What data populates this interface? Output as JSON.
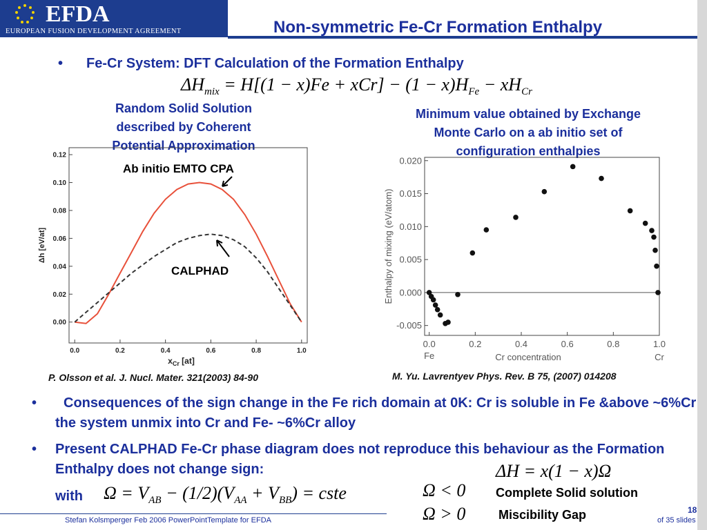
{
  "header": {
    "logo": "EFDA",
    "logo_subtitle": "EUROPEAN FUSION DEVELOPMENT AGREEMENT",
    "title": "Non-symmetric Fe-Cr Formation Enthalpy"
  },
  "bullet_top": "Fe-Cr System: DFT  Calculation of the Formation Enthalpy",
  "formula_main": [
    {
      "text": "ΔH",
      "sub": "mix"
    },
    {
      "text": " = H[(1 − x)Fe + xCr] − (1 − x)H",
      "sub": "Fe"
    },
    {
      "text": " − xH",
      "sub": "Cr"
    }
  ],
  "left_caption": [
    "Random Solid Solution",
    "described by Coherent",
    "Potential Approximation"
  ],
  "right_caption": [
    "Minimum value obtained by Exchange",
    "Monte Carlo on a ab initio set of",
    "configuration enthalpies"
  ],
  "left_reference": "P. Olsson et al. J. Nucl. Mater. 321(2003) 84-90",
  "right_reference": "M. Yu. Lavrentyev Phys. Rev. B 75, (2007) 014208",
  "chart_data": [
    {
      "type": "line",
      "x_label": {
        "text": "x",
        "sub": "Cr",
        "unit": " [at]"
      },
      "y_label": "Δh [eV/at]",
      "x": [
        0,
        0.05,
        0.1,
        0.15,
        0.2,
        0.25,
        0.3,
        0.35,
        0.4,
        0.45,
        0.5,
        0.55,
        0.6,
        0.65,
        0.7,
        0.75,
        0.8,
        0.85,
        0.9,
        0.95,
        1.0
      ],
      "series": [
        {
          "name": "Ab initio EMTO  CPA",
          "color": "#e8503a",
          "dashed": false,
          "values": [
            0,
            -0.001,
            0.006,
            0.02,
            0.035,
            0.05,
            0.065,
            0.078,
            0.088,
            0.095,
            0.099,
            0.1,
            0.099,
            0.095,
            0.088,
            0.077,
            0.063,
            0.047,
            0.03,
            0.013,
            0
          ]
        },
        {
          "name": "CALPHAD",
          "color": "#333333",
          "dashed": true,
          "values": [
            0,
            0.007,
            0.014,
            0.021,
            0.028,
            0.035,
            0.041,
            0.047,
            0.052,
            0.057,
            0.06,
            0.062,
            0.063,
            0.062,
            0.059,
            0.054,
            0.046,
            0.036,
            0.024,
            0.012,
            0
          ]
        }
      ],
      "xlim": [
        -0.025,
        1.025
      ],
      "xticks": [
        {
          "value": 0,
          "label": "0.0"
        },
        0.2,
        0.4,
        0.6,
        0.8,
        {
          "value": 1,
          "label": "1.0"
        }
      ],
      "ylim": [
        -0.015,
        0.125
      ],
      "yticks": [
        {
          "value": 0,
          "label": "0.00"
        },
        0.02,
        0.04,
        0.06,
        0.08,
        {
          "value": 0.1,
          "label": "0.10"
        },
        0.12
      ]
    },
    {
      "type": "scatter",
      "x_label": "Cr concentration",
      "y_label": "Enthalpy of mixing (eV/atom)",
      "x_end_labels": [
        "Fe",
        "Cr"
      ],
      "color": "#111111",
      "reference_line": 0,
      "x": [
        0,
        0.009,
        0.018,
        0.027,
        0.036,
        0.048,
        0.07,
        0.082,
        0.124,
        0.188,
        0.248,
        0.376,
        0.5,
        0.624,
        0.748,
        0.873,
        0.939,
        0.967,
        0.976,
        0.982,
        0.988,
        0.994
      ],
      "values": [
        0,
        -0.0006,
        -0.0011,
        -0.0019,
        -0.0026,
        -0.0034,
        -0.0047,
        -0.0045,
        -0.0003,
        0.006,
        0.0095,
        0.0114,
        0.0153,
        0.0191,
        0.0173,
        0.0124,
        0.0105,
        0.0094,
        0.0084,
        0.0064,
        0.004,
        0
      ],
      "xlim": [
        -0.02,
        1.0
      ],
      "xticks": [
        {
          "value": 0,
          "label": "0.0"
        },
        0.2,
        0.4,
        0.6,
        0.8,
        {
          "value": 1,
          "label": "1.0"
        }
      ],
      "ylim": [
        -0.0065,
        0.0205
      ],
      "yticks": [
        -0.005,
        {
          "value": 0,
          "label": "0.000"
        },
        0.005,
        {
          "value": 0.01,
          "label": "0.010"
        },
        0.015,
        {
          "value": 0.02,
          "label": "0.020"
        }
      ]
    }
  ],
  "bullets": [
    "Consequences of the sign change in the Fe rich domain at 0K: Cr is soluble in Fe &above ~6%Cr the system unmix into Cr and Fe- ~6%Cr alloy",
    "Present CALPHAD Fe-Cr phase diagram does not reproduce this behaviour as the Formation Enthalpy does not change sign:"
  ],
  "formula_omega_def": [
    {
      "text": "ΔH = x(1 − x)Ω"
    }
  ],
  "with_label": "with",
  "formula_omega": [
    {
      "text": "Ω = V",
      "sub": "AB"
    },
    {
      "text": " − (1/2)(V",
      "sub": "AA"
    },
    {
      "text": " + V",
      "sub": "BB"
    },
    {
      "text": ") = cste"
    }
  ],
  "cases": [
    {
      "formula": [
        {
          "text": "Ω < 0"
        }
      ],
      "label": "Complete Solid solution"
    },
    {
      "formula": [
        {
          "text": "Ω > 0"
        }
      ],
      "label": "Miscibility Gap"
    }
  ],
  "footer": {
    "author": "Stefan Kolsmperger Feb 2006 PowerPointTemplate for EFDA",
    "slide_number": "18",
    "slide_total": "of  35 slides"
  }
}
